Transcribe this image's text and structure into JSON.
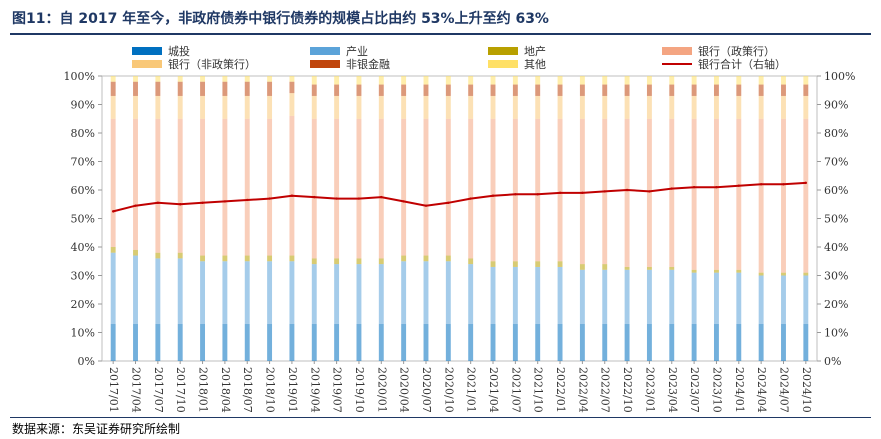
{
  "title": "图11：自 2017 年至今，非政府债券中银行债券的规模占比由约 53%上升至约 63%",
  "source": "数据来源：东吴证券研究所绘制",
  "chart_data": {
    "type": "bar",
    "stacked": true,
    "y_left_ticks": [
      "0%",
      "10%",
      "20%",
      "30%",
      "40%",
      "50%",
      "60%",
      "70%",
      "80%",
      "90%",
      "100%"
    ],
    "y_right_ticks": [
      "0%",
      "10%",
      "20%",
      "30%",
      "40%",
      "50%",
      "60%",
      "70%",
      "80%",
      "90%",
      "100%"
    ],
    "ylim": [
      0,
      100
    ],
    "x_tick_labels": [
      "2017/01",
      "2017/04",
      "2017/07",
      "2017/10",
      "2018/01",
      "2018/04",
      "2018/07",
      "2018/10",
      "2019/01",
      "2019/04",
      "2019/07",
      "2019/10",
      "2020/01",
      "2020/04",
      "2020/07",
      "2020/10",
      "2021/01",
      "2021/04",
      "2021/07",
      "2021/10",
      "2022/01",
      "2022/04",
      "2022/07",
      "2022/10",
      "2023/01",
      "2023/04",
      "2023/07",
      "2023/10",
      "2024/01",
      "2024/04",
      "2024/07",
      "2024/10"
    ],
    "legend_position": "top",
    "series": [
      {
        "name": "城投",
        "color": "#0070c0",
        "axis": "left",
        "type": "bar",
        "values": [
          13,
          13,
          13,
          13,
          13,
          13,
          13,
          13,
          13,
          13,
          13,
          13,
          13,
          13,
          13,
          13,
          13,
          13,
          13,
          13,
          13,
          13,
          13,
          13,
          13,
          13,
          13,
          13,
          13,
          13,
          13,
          13
        ]
      },
      {
        "name": "产业",
        "color": "#5ba3d9",
        "axis": "left",
        "type": "bar",
        "values": [
          25,
          24,
          23,
          23,
          22,
          22,
          22,
          22,
          22,
          21,
          21,
          21,
          21,
          22,
          22,
          22,
          21,
          20,
          20,
          20,
          20,
          19,
          19,
          19,
          19,
          19,
          18,
          18,
          18,
          17,
          17,
          17
        ]
      },
      {
        "name": "地产",
        "color": "#b8a000",
        "axis": "left",
        "type": "bar",
        "values": [
          2,
          2,
          2,
          2,
          2,
          2,
          2,
          2,
          2,
          2,
          2,
          2,
          2,
          2,
          2,
          2,
          2,
          2,
          2,
          2,
          2,
          2,
          2,
          1,
          1,
          1,
          1,
          1,
          1,
          1,
          1,
          1
        ]
      },
      {
        "name": "银行（政策行）",
        "color": "#f4a582",
        "axis": "left",
        "type": "bar",
        "values": [
          45,
          46,
          47,
          47,
          48,
          48,
          48,
          48,
          49,
          49,
          49,
          49,
          49,
          48,
          48,
          48,
          49,
          50,
          50,
          50,
          50,
          51,
          51,
          52,
          52,
          52,
          53,
          53,
          53,
          54,
          54,
          54
        ]
      },
      {
        "name": "银行（非政策行）",
        "color": "#f9c878",
        "axis": "left",
        "type": "bar",
        "values": [
          8,
          8,
          8,
          8,
          8,
          8,
          8,
          8,
          8,
          8,
          8,
          8,
          8,
          8,
          8,
          8,
          8,
          8,
          8,
          8,
          8,
          8,
          8,
          8,
          8,
          8,
          8,
          8,
          8,
          8,
          8,
          8
        ]
      },
      {
        "name": "非银金融",
        "color": "#c0450c",
        "axis": "left",
        "type": "bar",
        "values": [
          5,
          5,
          5,
          5,
          5,
          5,
          5,
          5,
          4,
          4,
          4,
          4,
          4,
          4,
          4,
          4,
          4,
          4,
          4,
          4,
          4,
          4,
          4,
          4,
          4,
          4,
          4,
          4,
          4,
          4,
          4,
          4
        ]
      },
      {
        "name": "其他",
        "color": "#ffe066",
        "axis": "left",
        "type": "bar",
        "values": [
          2,
          2,
          2,
          2,
          2,
          2,
          2,
          2,
          2,
          3,
          3,
          3,
          3,
          3,
          3,
          3,
          3,
          3,
          3,
          3,
          3,
          3,
          3,
          3,
          3,
          3,
          3,
          3,
          3,
          3,
          3,
          3
        ]
      },
      {
        "name": "银行合计（右轴）",
        "color": "#c00000",
        "axis": "right",
        "type": "line",
        "values": [
          52.5,
          54.5,
          55.5,
          55,
          55.5,
          56,
          56.5,
          57,
          58,
          57.5,
          57,
          57,
          57.5,
          56,
          54.5,
          55.5,
          57,
          58,
          58.5,
          58.5,
          59,
          59,
          59.5,
          60,
          59.5,
          60.5,
          61,
          61,
          61.5,
          62,
          62,
          62.5
        ]
      }
    ]
  }
}
